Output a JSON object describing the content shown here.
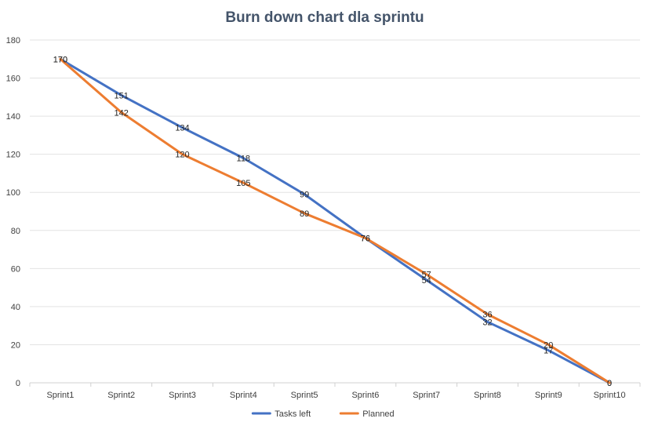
{
  "chart_data": {
    "type": "line",
    "title": "Burn down chart dla sprintu",
    "categories": [
      "Sprint1",
      "Sprint2",
      "Sprint3",
      "Sprint4",
      "Sprint5",
      "Sprint6",
      "Sprint7",
      "Sprint8",
      "Sprint9",
      "Sprint10"
    ],
    "series": [
      {
        "name": "Tasks left",
        "color": "#4472c4",
        "values": [
          170,
          151,
          134,
          118,
          99,
          76,
          54,
          32,
          17,
          0
        ]
      },
      {
        "name": "Planned",
        "color": "#ed7d31",
        "values": [
          170,
          142,
          120,
          105,
          89,
          76,
          57,
          36,
          20,
          0
        ]
      }
    ],
    "xlabel": "",
    "ylabel": "",
    "ylim": [
      0,
      180
    ],
    "yticks": [
      0,
      20,
      40,
      60,
      80,
      100,
      120,
      140,
      160,
      180
    ],
    "grid": true,
    "data_labels": true,
    "legend": "bottom"
  }
}
